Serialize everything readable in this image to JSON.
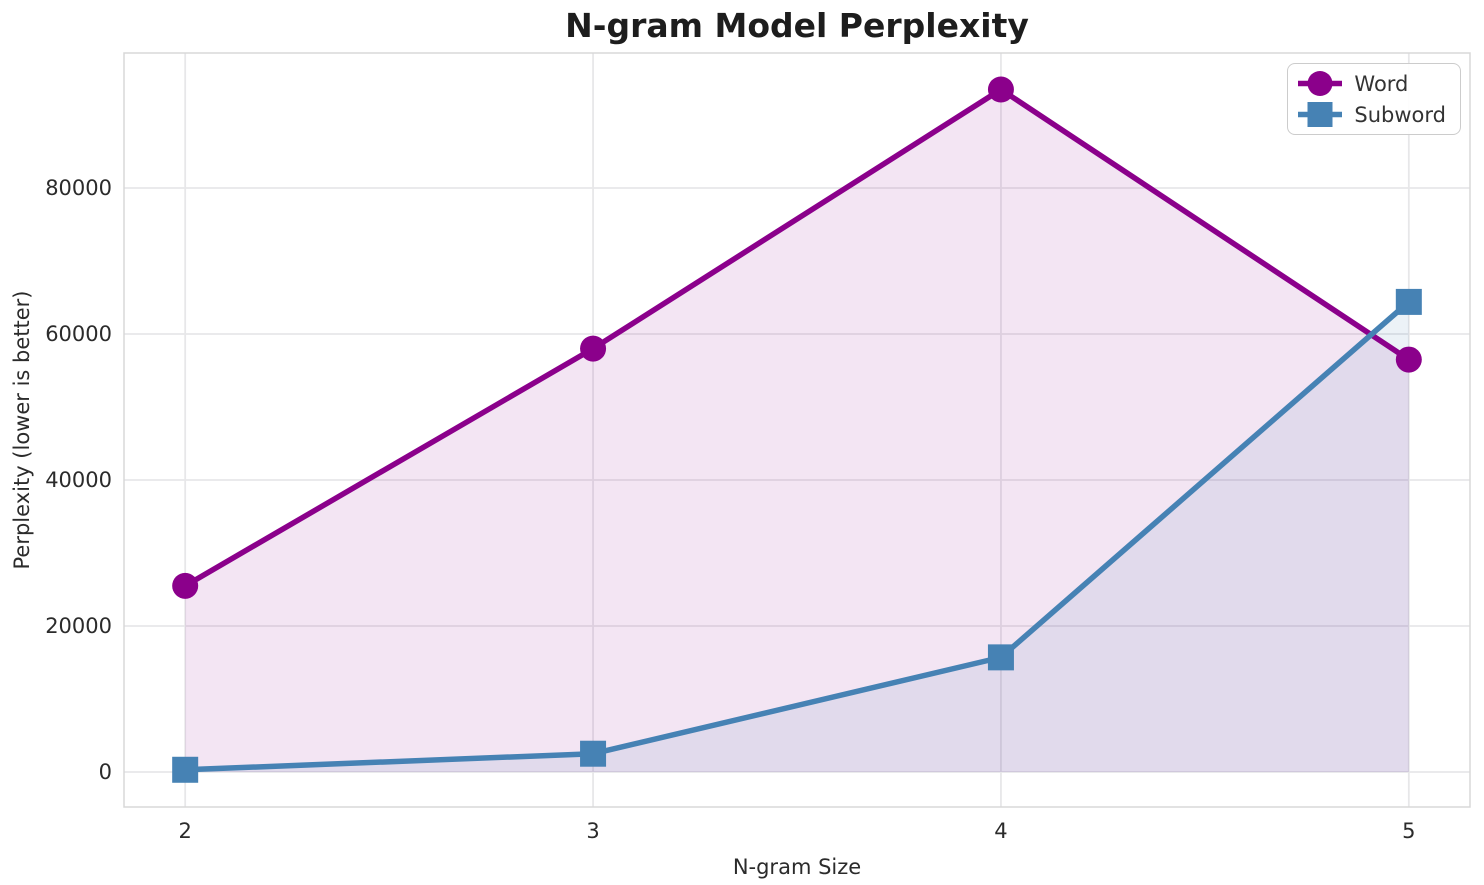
{
  "chart_data": {
    "type": "line",
    "title": "N-gram Model Perplexity",
    "xlabel": "N-gram Size",
    "ylabel": "Perplexity (lower is better)",
    "x": [
      2,
      3,
      4,
      5
    ],
    "series": [
      {
        "name": "Word",
        "color": "#8B008B",
        "marker": "circle",
        "values": [
          25500,
          58000,
          93500,
          56500
        ]
      },
      {
        "name": "Subword",
        "color": "#4682B4",
        "marker": "square",
        "values": [
          300,
          2500,
          15700,
          64400
        ]
      }
    ],
    "fill_opacity": 0.1,
    "fill_to_zero": true,
    "xlim": [
      1.85,
      5.15
    ],
    "ylim": [
      -4800,
      98500
    ],
    "x_ticks": [
      2,
      3,
      4,
      5
    ],
    "x_tick_labels": [
      "2",
      "3",
      "4",
      "5"
    ],
    "y_ticks": [
      0,
      20000,
      40000,
      60000,
      80000
    ],
    "y_tick_labels": [
      "0",
      "20000",
      "40000",
      "60000",
      "80000"
    ],
    "grid": true,
    "legend_position": "upper right"
  },
  "styles": {
    "word_color": "#8B008B",
    "subword_color": "#4682B4",
    "grid_color": "#e7e7e9",
    "spine_color": "#d8d8d8",
    "text_color": "#2b2b2b",
    "legend_border_color": "#cccccc",
    "background": "#ffffff"
  }
}
